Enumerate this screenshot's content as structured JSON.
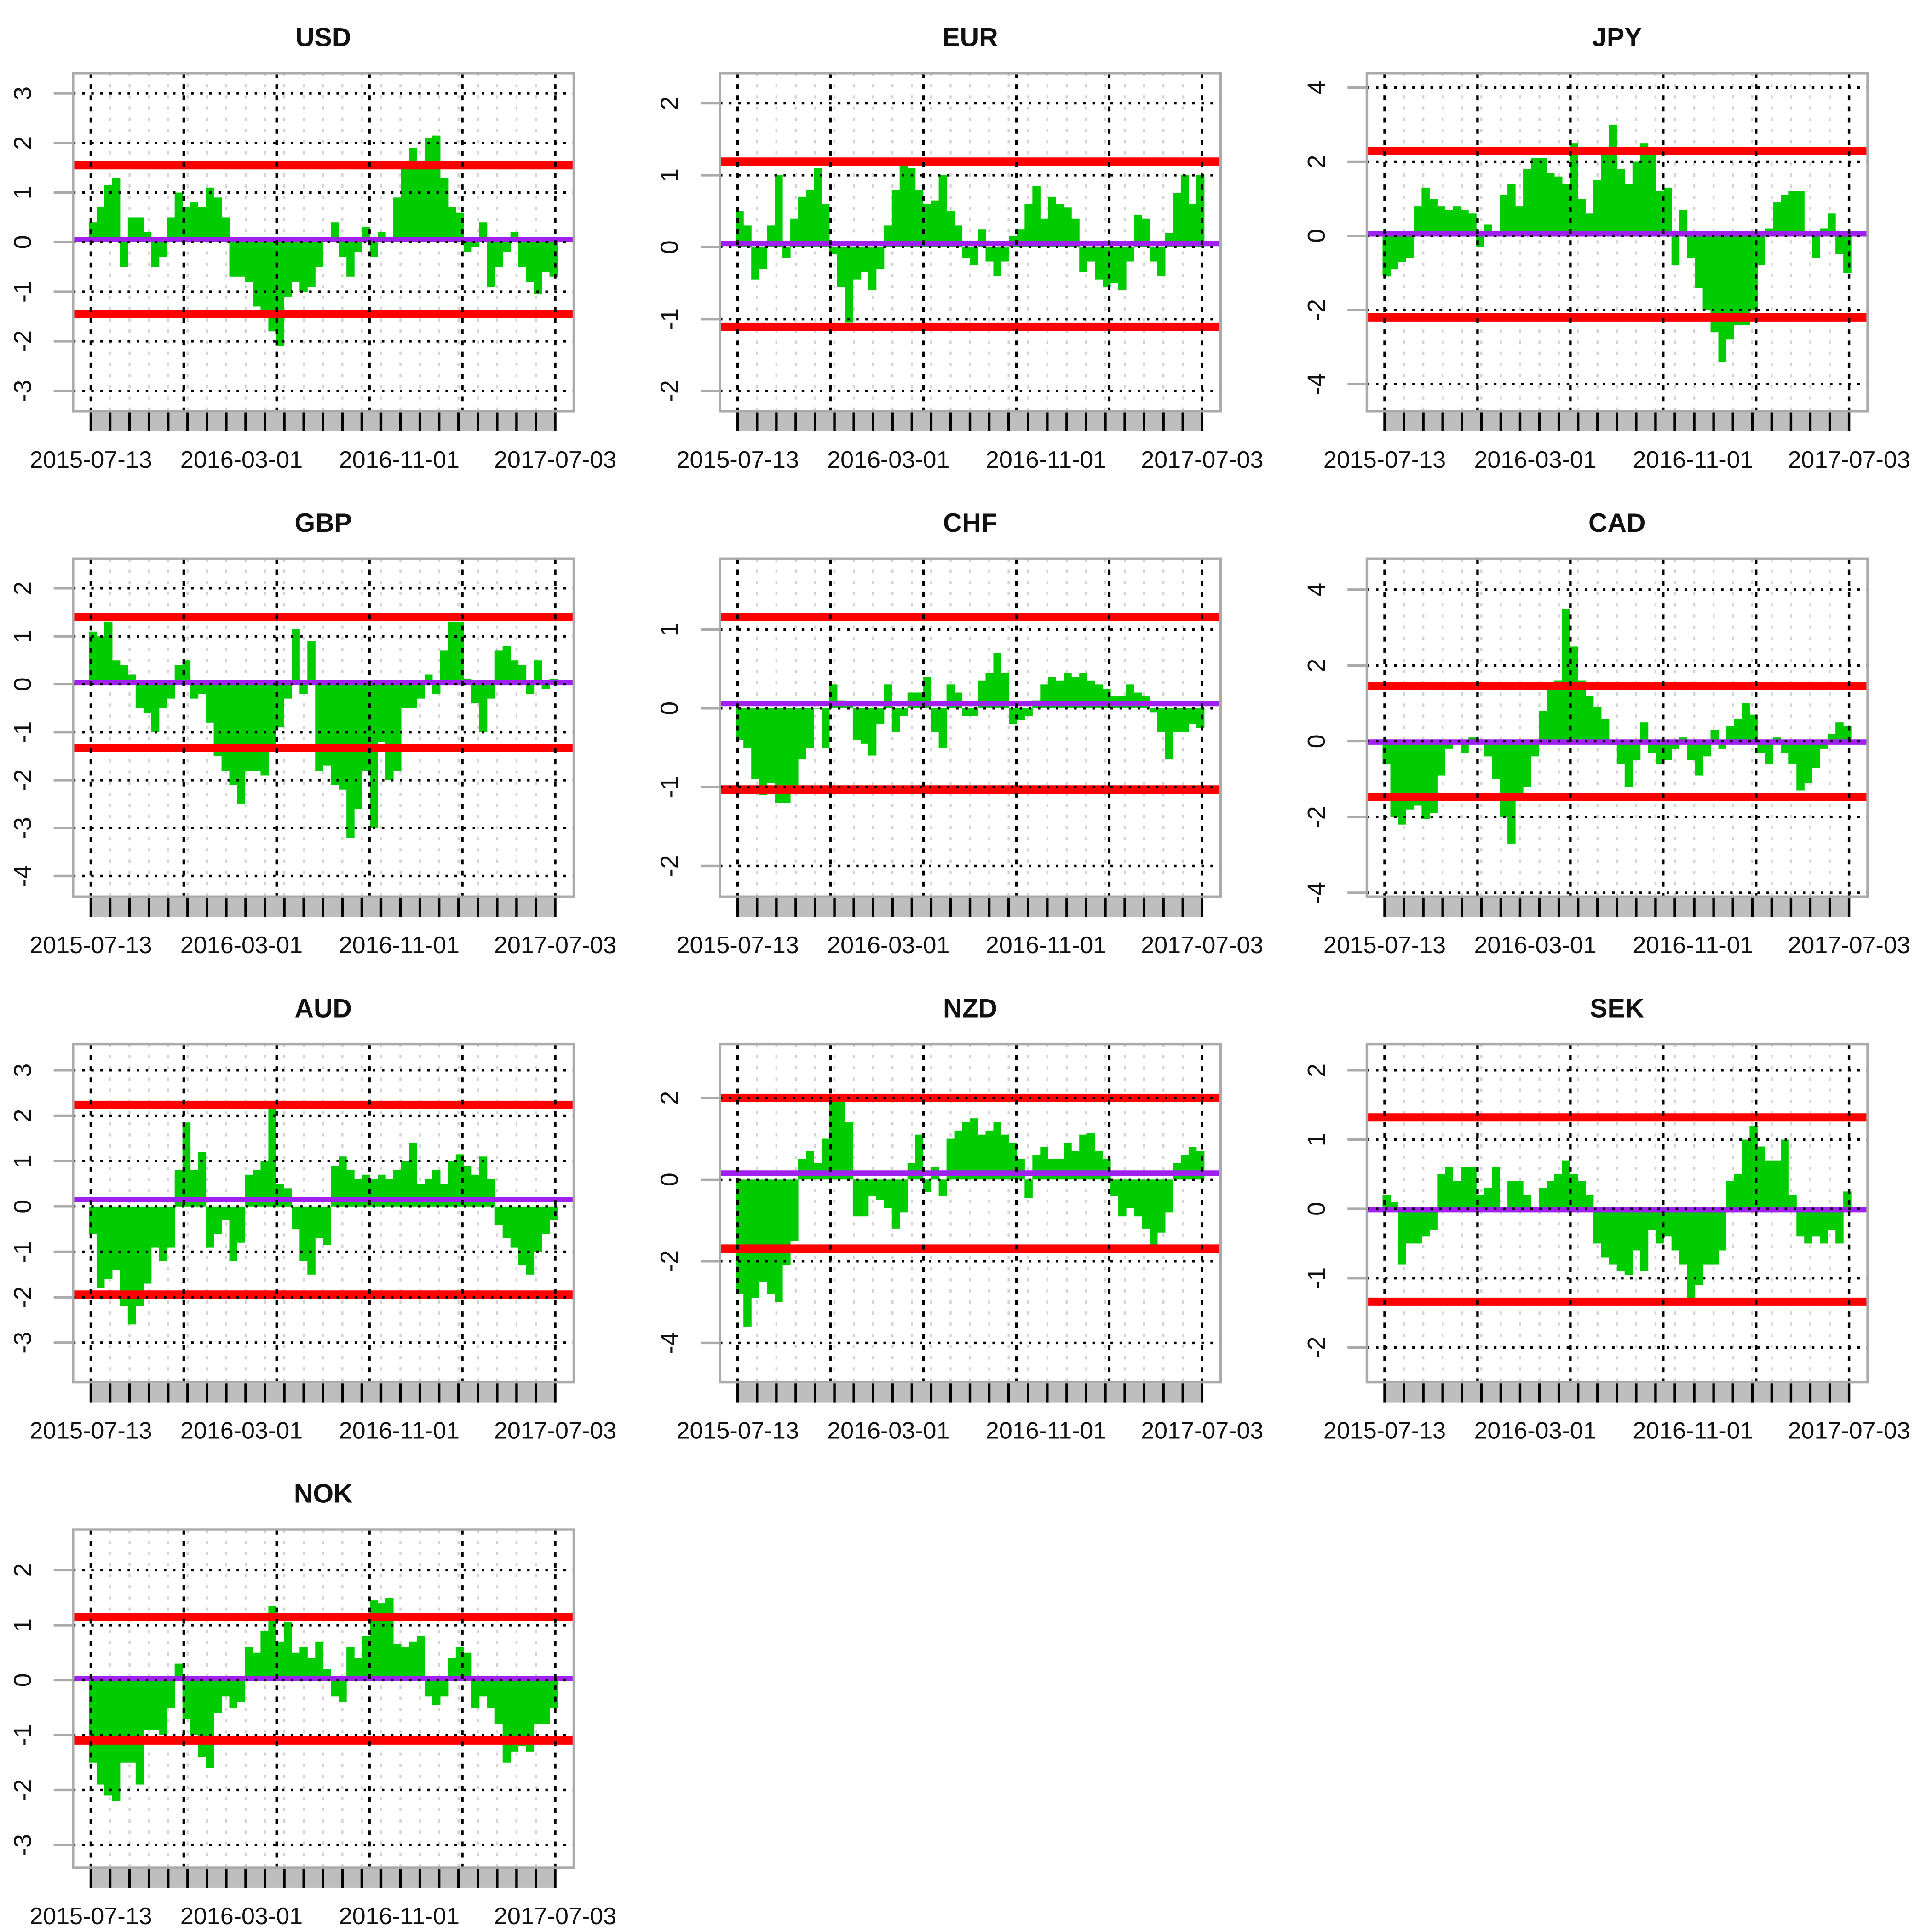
{
  "chart_data": [
    {
      "type": "bar",
      "title": "USD",
      "x_tick_labels": [
        "2015-07-13",
        "2016-03-01",
        "2016-11-01",
        "2017-07-03"
      ],
      "yticks": [
        -3,
        -2,
        -1,
        0,
        1,
        2,
        3
      ],
      "ylim": [
        -3.41,
        3.41
      ],
      "upper_band": 1.55,
      "lower_band": -1.45,
      "mean_line": 0.05,
      "values": [
        0.4,
        0.7,
        1.15,
        1.3,
        -0.5,
        0.5,
        0.5,
        0.2,
        -0.5,
        -0.3,
        0.5,
        1.0,
        0.7,
        0.8,
        0.7,
        1.1,
        0.9,
        0.5,
        -0.7,
        -0.7,
        -0.8,
        -1.3,
        -1.5,
        -1.8,
        -2.1,
        -1.1,
        -0.8,
        -1.0,
        -0.9,
        -0.5,
        0.1,
        0.4,
        -0.3,
        -0.7,
        -0.2,
        0.3,
        -0.3,
        0.2,
        0.1,
        0.9,
        1.5,
        1.9,
        1.6,
        2.1,
        2.15,
        1.3,
        0.7,
        0.6,
        -0.2,
        -0.1,
        0.4,
        -0.9,
        -0.5,
        -0.2,
        0.2,
        -0.5,
        -0.8,
        -1.05,
        -0.6,
        -0.7
      ]
    },
    {
      "type": "bar",
      "title": "EUR",
      "x_tick_labels": [
        "2015-07-13",
        "2016-03-01",
        "2016-11-01",
        "2017-07-03"
      ],
      "yticks": [
        -2,
        -1,
        0,
        1,
        2
      ],
      "ylim": [
        -2.28,
        2.42
      ],
      "upper_band": 1.19,
      "lower_band": -1.11,
      "mean_line": 0.05,
      "values": [
        0.5,
        0.3,
        -0.45,
        -0.3,
        0.3,
        1.0,
        -0.15,
        0.4,
        0.7,
        0.8,
        1.1,
        0.6,
        -0.1,
        -0.55,
        -1.05,
        -0.45,
        -0.35,
        -0.6,
        -0.3,
        0.3,
        0.8,
        1.2,
        1.1,
        0.8,
        0.6,
        0.65,
        1.0,
        0.5,
        0.3,
        -0.15,
        -0.25,
        0.25,
        -0.2,
        -0.4,
        -0.2,
        0.15,
        0.25,
        0.6,
        0.85,
        0.4,
        0.7,
        0.6,
        0.55,
        0.4,
        -0.35,
        -0.2,
        -0.45,
        -0.55,
        -0.5,
        -0.6,
        -0.2,
        0.45,
        0.4,
        -0.2,
        -0.4,
        0.2,
        0.75,
        1.0,
        0.6,
        1.0
      ]
    },
    {
      "type": "bar",
      "title": "JPY",
      "x_tick_labels": [
        "2015-07-13",
        "2016-03-01",
        "2016-11-01",
        "2017-07-03"
      ],
      "yticks": [
        -4,
        -2,
        0,
        2,
        4
      ],
      "ylim": [
        -4.73,
        4.39
      ],
      "upper_band": 2.28,
      "lower_band": -2.2,
      "mean_line": 0.05,
      "values": [
        -1.1,
        -0.9,
        -0.7,
        -0.6,
        0.8,
        1.3,
        1.0,
        0.8,
        0.7,
        0.8,
        0.7,
        0.6,
        -0.3,
        0.3,
        0.1,
        1.1,
        1.4,
        0.8,
        1.8,
        2.1,
        2.1,
        1.7,
        1.6,
        1.4,
        2.5,
        1.0,
        0.6,
        1.5,
        2.2,
        3.0,
        1.8,
        1.4,
        2.0,
        2.5,
        2.4,
        1.2,
        1.3,
        -0.8,
        0.7,
        -0.6,
        -1.4,
        -2.0,
        -2.6,
        -3.4,
        -2.8,
        -2.4,
        -2.4,
        -2.0,
        -0.8,
        0.2,
        0.9,
        1.1,
        1.2,
        1.2,
        0.1,
        -0.6,
        0.2,
        0.6,
        -0.5,
        -1.0
      ]
    },
    {
      "type": "bar",
      "title": "GBP",
      "x_tick_labels": [
        "2015-07-13",
        "2016-03-01",
        "2016-11-01",
        "2017-07-03"
      ],
      "yticks": [
        -4,
        -3,
        -2,
        -1,
        0,
        1,
        2
      ],
      "ylim": [
        -4.43,
        2.62
      ],
      "upper_band": 1.4,
      "lower_band": -1.33,
      "mean_line": 0.03,
      "values": [
        1.1,
        1.0,
        1.3,
        0.5,
        0.4,
        0.2,
        -0.5,
        -0.6,
        -1.0,
        -0.5,
        -0.3,
        0.4,
        0.5,
        -0.3,
        -0.2,
        -0.8,
        -1.5,
        -1.8,
        -2.1,
        -2.5,
        -1.8,
        -1.8,
        -1.9,
        -1.3,
        -0.9,
        -0.3,
        1.15,
        -0.2,
        0.9,
        -1.8,
        -1.7,
        -2.1,
        -2.2,
        -3.2,
        -2.6,
        -1.8,
        -3.0,
        -1.2,
        -2.0,
        -1.8,
        -0.5,
        -0.5,
        -0.3,
        0.2,
        -0.2,
        0.7,
        1.3,
        1.3,
        0.1,
        -0.4,
        -1.0,
        -0.3,
        0.7,
        0.8,
        0.5,
        0.4,
        -0.2,
        0.5,
        -0.1,
        0.1
      ]
    },
    {
      "type": "bar",
      "title": "CHF",
      "x_tick_labels": [
        "2015-07-13",
        "2016-03-01",
        "2016-11-01",
        "2017-07-03"
      ],
      "yticks": [
        -2,
        -1,
        0,
        1
      ],
      "ylim": [
        -2.39,
        1.9
      ],
      "upper_band": 1.16,
      "lower_band": -1.03,
      "mean_line": 0.06,
      "values": [
        -0.4,
        -0.5,
        -0.9,
        -1.1,
        -0.95,
        -1.2,
        -1.2,
        -1.0,
        -0.65,
        -0.5,
        0.0,
        -0.5,
        0.3,
        0.1,
        0.05,
        -0.4,
        -0.45,
        -0.6,
        -0.2,
        0.3,
        -0.3,
        -0.1,
        0.2,
        0.2,
        0.4,
        -0.3,
        -0.5,
        0.3,
        0.2,
        -0.1,
        -0.1,
        0.35,
        0.45,
        0.7,
        0.45,
        -0.2,
        -0.15,
        -0.1,
        0.1,
        0.3,
        0.4,
        0.35,
        0.45,
        0.4,
        0.45,
        0.35,
        0.3,
        0.25,
        0.15,
        0.15,
        0.3,
        0.2,
        0.15,
        -0.05,
        -0.3,
        -0.65,
        -0.3,
        -0.3,
        -0.2,
        -0.25
      ]
    },
    {
      "type": "bar",
      "title": "CAD",
      "x_tick_labels": [
        "2015-07-13",
        "2016-03-01",
        "2016-11-01",
        "2017-07-03"
      ],
      "yticks": [
        -4,
        -2,
        0,
        2,
        4
      ],
      "ylim": [
        -4.1,
        4.82
      ],
      "upper_band": 1.45,
      "lower_band": -1.47,
      "mean_line": -0.02,
      "values": [
        -0.6,
        -2.0,
        -2.2,
        -1.8,
        -1.7,
        -2.05,
        -1.9,
        -0.9,
        -0.2,
        0.0,
        -0.3,
        0.1,
        0.05,
        -0.4,
        -1.0,
        -2.0,
        -2.7,
        -1.5,
        -1.2,
        -0.4,
        0.8,
        1.5,
        1.6,
        3.5,
        2.5,
        1.6,
        1.2,
        0.9,
        0.6,
        -0.1,
        -0.6,
        -1.2,
        -0.5,
        0.5,
        -0.3,
        -0.6,
        -0.5,
        -0.2,
        0.1,
        -0.5,
        -0.9,
        -0.4,
        0.3,
        -0.2,
        0.4,
        0.6,
        1.0,
        0.7,
        -0.3,
        -0.6,
        0.1,
        -0.3,
        -0.6,
        -1.3,
        -1.1,
        -0.7,
        -0.2,
        0.2,
        0.5,
        0.4
      ]
    },
    {
      "type": "bar",
      "title": "AUD",
      "x_tick_labels": [
        "2015-07-13",
        "2016-03-01",
        "2016-11-01",
        "2017-07-03"
      ],
      "yticks": [
        -3,
        -2,
        -1,
        0,
        1,
        2,
        3
      ],
      "ylim": [
        -3.87,
        3.58
      ],
      "upper_band": 2.24,
      "lower_band": -1.94,
      "mean_line": 0.15,
      "values": [
        -0.6,
        -1.8,
        -1.6,
        -1.4,
        -2.2,
        -2.6,
        -2.2,
        -1.7,
        -0.9,
        -1.2,
        -0.9,
        0.8,
        1.85,
        0.8,
        1.2,
        -0.9,
        -0.6,
        -0.3,
        -1.2,
        -0.8,
        0.7,
        0.8,
        1.0,
        2.2,
        0.5,
        0.4,
        -0.5,
        -1.2,
        -1.5,
        -0.7,
        -0.85,
        0.9,
        1.1,
        0.8,
        0.6,
        0.7,
        0.6,
        0.7,
        0.6,
        0.8,
        1.0,
        1.4,
        0.5,
        0.6,
        0.8,
        0.5,
        1.0,
        1.15,
        0.9,
        0.7,
        1.1,
        0.6,
        -0.4,
        -0.7,
        -0.9,
        -1.3,
        -1.5,
        -1.0,
        -0.6,
        -0.3
      ]
    },
    {
      "type": "bar",
      "title": "NZD",
      "x_tick_labels": [
        "2015-07-13",
        "2016-03-01",
        "2016-11-01",
        "2017-07-03"
      ],
      "yticks": [
        -4,
        -2,
        0,
        2
      ],
      "ylim": [
        -4.96,
        3.32
      ],
      "upper_band": 2.0,
      "lower_band": -1.69,
      "mean_line": 0.16,
      "values": [
        -2.8,
        -3.6,
        -2.9,
        -2.5,
        -2.8,
        -3.0,
        -2.1,
        -1.5,
        0.5,
        0.7,
        0.4,
        1.0,
        2.0,
        1.9,
        1.4,
        -0.9,
        -0.9,
        -0.4,
        -0.5,
        -0.7,
        -1.2,
        -0.8,
        0.4,
        1.1,
        -0.3,
        0.3,
        -0.4,
        1.0,
        1.2,
        1.4,
        1.5,
        1.1,
        1.2,
        1.4,
        1.1,
        0.9,
        0.5,
        -0.45,
        0.6,
        0.8,
        0.5,
        0.5,
        0.9,
        0.7,
        1.1,
        1.15,
        0.7,
        0.5,
        -0.4,
        -0.9,
        -0.7,
        -0.9,
        -1.2,
        -1.6,
        -1.3,
        -0.8,
        0.4,
        0.6,
        0.8,
        0.7
      ]
    },
    {
      "type": "bar",
      "title": "SEK",
      "x_tick_labels": [
        "2015-07-13",
        "2016-03-01",
        "2016-11-01",
        "2017-07-03"
      ],
      "yticks": [
        -2,
        -1,
        0,
        1,
        2
      ],
      "ylim": [
        -2.5,
        2.38
      ],
      "upper_band": 1.32,
      "lower_band": -1.34,
      "mean_line": -0.01,
      "values": [
        0.2,
        0.1,
        -0.8,
        -0.5,
        -0.5,
        -0.4,
        -0.3,
        0.5,
        0.6,
        0.4,
        0.6,
        0.6,
        0.2,
        0.3,
        0.6,
        0.0,
        0.4,
        0.4,
        0.2,
        0.0,
        0.3,
        0.4,
        0.5,
        0.7,
        0.5,
        0.4,
        0.2,
        -0.5,
        -0.7,
        -0.8,
        -0.9,
        -0.95,
        -0.6,
        -0.9,
        -0.3,
        -0.5,
        -0.4,
        -0.6,
        -0.8,
        -1.3,
        -1.1,
        -0.8,
        -0.8,
        -0.6,
        0.4,
        0.5,
        1.0,
        1.2,
        0.9,
        0.7,
        0.7,
        1.0,
        0.2,
        -0.4,
        -0.5,
        -0.4,
        -0.5,
        -0.3,
        -0.5,
        0.25
      ]
    },
    {
      "type": "bar",
      "title": "NOK",
      "x_tick_labels": [
        "2015-07-13",
        "2016-03-01",
        "2016-11-01",
        "2017-07-03"
      ],
      "yticks": [
        -3,
        -2,
        -1,
        0,
        1,
        2
      ],
      "ylim": [
        -3.41,
        2.74
      ],
      "upper_band": 1.15,
      "lower_band": -1.1,
      "mean_line": 0.03,
      "values": [
        -1.5,
        -1.9,
        -2.1,
        -2.2,
        -1.5,
        -1.5,
        -1.9,
        -0.9,
        -0.9,
        -1.0,
        -0.5,
        0.3,
        -0.7,
        -1.0,
        -1.4,
        -1.6,
        -0.6,
        -0.3,
        -0.5,
        -0.4,
        0.6,
        0.5,
        0.9,
        1.35,
        0.7,
        1.05,
        0.5,
        0.6,
        0.4,
        0.7,
        0.2,
        -0.3,
        -0.4,
        0.6,
        0.4,
        0.8,
        1.45,
        1.4,
        1.5,
        0.65,
        0.6,
        0.7,
        0.8,
        -0.3,
        -0.45,
        -0.3,
        0.4,
        0.6,
        0.5,
        -0.5,
        -0.3,
        -0.5,
        -0.8,
        -1.5,
        -1.3,
        -1.2,
        -1.3,
        -0.8,
        -0.8,
        -0.5
      ]
    }
  ],
  "style": {
    "bar_color": "#00cc00",
    "band_color": "#ff0000",
    "mean_color": "#a020f0",
    "grid_color": "#000000",
    "minor_grid_color": "#d3d3d3",
    "axis_color": "#aaaaaa",
    "tick_strip_color": "#bebebe"
  }
}
